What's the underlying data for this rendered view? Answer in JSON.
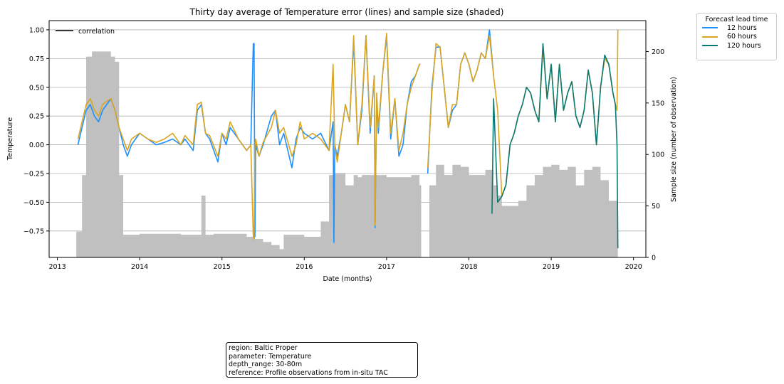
{
  "chart_data": {
    "type": "line",
    "title": "Thirty day average of Temperature error (lines) and sample size (shaded)",
    "xlabel": "Date (months)",
    "ylabel": "Temperature",
    "y2label": "Sample size (number of observation)",
    "xlim": [
      2012.9,
      2020.15
    ],
    "ylim": [
      -0.98,
      1.08
    ],
    "y2lim": [
      0,
      230
    ],
    "x_ticks": [
      "2013",
      "2014",
      "2015",
      "2016",
      "2017",
      "2018",
      "2019",
      "2020"
    ],
    "y_ticks": [
      "1.00",
      "0.75",
      "0.50",
      "0.25",
      "0.00",
      "−0.25",
      "−0.50",
      "−0.75"
    ],
    "y2_ticks": [
      "200",
      "150",
      "100",
      "50",
      "0"
    ],
    "grid": "horizontal",
    "correlation_legend": {
      "label": "correlation",
      "color": "#000000",
      "placement": "top-left"
    },
    "legend": {
      "title": "Forecast lead time",
      "placement": "outside-top-right"
    },
    "sample_size": {
      "color": "#c0c0c0",
      "x": [
        2013.23,
        2013.27,
        2013.3,
        2013.35,
        2013.42,
        2013.5,
        2013.6,
        2013.65,
        2013.7,
        2013.75,
        2013.8,
        2013.85,
        2014.0,
        2014.5,
        2014.7,
        2014.75,
        2014.8,
        2014.9,
        2015.0,
        2015.3,
        2015.4,
        2015.5,
        2015.6,
        2015.7,
        2015.75,
        2015.85,
        2016.0,
        2016.1,
        2016.2,
        2016.3,
        2016.35,
        2016.5,
        2016.6,
        2016.65,
        2016.7,
        2016.75,
        2016.85,
        2016.9,
        2017.0,
        2017.2,
        2017.3,
        2017.4,
        2017.42,
        2017.5,
        2017.52,
        2017.6,
        2017.7,
        2017.8,
        2017.9,
        2018.0,
        2018.2,
        2018.3,
        2018.35,
        2018.4,
        2018.5,
        2018.6,
        2018.7,
        2018.8,
        2018.9,
        2019.0,
        2019.1,
        2019.2,
        2019.3,
        2019.4,
        2019.5,
        2019.6,
        2019.7,
        2019.8,
        2019.81
      ],
      "values": [
        25,
        25,
        80,
        195,
        200,
        200,
        200,
        195,
        190,
        80,
        22,
        22,
        23,
        22,
        22,
        60,
        22,
        23,
        23,
        20,
        18,
        15,
        12,
        8,
        22,
        22,
        20,
        20,
        35,
        80,
        82,
        70,
        80,
        78,
        80,
        80,
        80,
        80,
        78,
        78,
        80,
        70,
        0,
        0,
        70,
        90,
        80,
        90,
        88,
        80,
        85,
        70,
        60,
        50,
        50,
        55,
        70,
        80,
        88,
        90,
        85,
        88,
        70,
        85,
        88,
        75,
        55,
        55,
        0
      ]
    },
    "series": [
      {
        "name": "12 hours",
        "color": "#1e90ff",
        "x": [
          2013.25,
          2013.3,
          2013.35,
          2013.4,
          2013.45,
          2013.5,
          2013.55,
          2013.6,
          2013.65,
          2013.7,
          2013.75,
          2013.8,
          2013.85,
          2013.9,
          2014.0,
          2014.1,
          2014.2,
          2014.3,
          2014.4,
          2014.5,
          2014.55,
          2014.65,
          2014.7,
          2014.75,
          2014.8,
          2014.85,
          2014.95,
          2015.0,
          2015.05,
          2015.1,
          2015.2,
          2015.3,
          2015.35,
          2015.38,
          2015.39,
          2015.4,
          2015.41,
          2015.45,
          2015.5,
          2015.6,
          2015.65,
          2015.7,
          2015.75,
          2015.85,
          2015.9,
          2015.95,
          2016.0,
          2016.1,
          2016.2,
          2016.3,
          2016.35,
          2016.36,
          2016.37,
          2016.4,
          2016.45,
          2016.5,
          2016.55,
          2016.6,
          2016.65,
          2016.7,
          2016.75,
          2016.8,
          2016.85,
          2016.86,
          2016.88,
          2016.9,
          2016.95,
          2017.0,
          2017.05,
          2017.1,
          2017.15,
          2017.2,
          2017.25,
          2017.3,
          2017.35,
          2017.4,
          2017.41
        ],
        "values": [
          0.0,
          0.15,
          0.3,
          0.35,
          0.25,
          0.2,
          0.3,
          0.35,
          0.4,
          0.3,
          0.15,
          0.0,
          -0.1,
          0.0,
          0.1,
          0.05,
          0.0,
          0.02,
          0.05,
          0.0,
          0.05,
          -0.05,
          0.3,
          0.35,
          0.1,
          0.05,
          -0.15,
          0.1,
          0.0,
          0.15,
          0.05,
          -0.05,
          0.0,
          0.88,
          0.88,
          -0.8,
          0.0,
          -0.1,
          0.0,
          0.25,
          0.3,
          0.0,
          0.1,
          -0.2,
          0.05,
          0.15,
          0.1,
          0.05,
          0.1,
          -0.05,
          0.2,
          -0.85,
          0.0,
          -0.1,
          0.1,
          0.35,
          0.2,
          0.9,
          0.0,
          0.3,
          0.95,
          0.1,
          0.6,
          -0.72,
          0.4,
          0.1,
          0.6,
          0.95,
          0.05,
          0.4,
          -0.1,
          0.0,
          0.35,
          0.55,
          0.6,
          0.7,
          0.7
        ]
      },
      {
        "name": "12 hours (2017.5–2019.8)",
        "color": "#1e90ff",
        "x": [
          2017.5,
          2017.55,
          2017.6,
          2017.65,
          2017.7,
          2017.75,
          2017.8,
          2017.85,
          2017.9,
          2017.95,
          2018.0,
          2018.05,
          2018.1,
          2018.15,
          2018.2,
          2018.25,
          2018.3
        ],
        "values": [
          -0.25,
          0.5,
          0.85,
          0.85,
          0.5,
          0.15,
          0.3,
          0.35,
          0.7,
          0.8,
          0.7,
          0.55,
          0.65,
          0.8,
          0.75,
          1.0,
          0.6
        ]
      },
      {
        "name": "60 hours",
        "color": "#daa520",
        "x": [
          2013.25,
          2013.3,
          2013.35,
          2013.4,
          2013.45,
          2013.5,
          2013.55,
          2013.6,
          2013.65,
          2013.7,
          2013.75,
          2013.8,
          2013.85,
          2013.9,
          2014.0,
          2014.1,
          2014.2,
          2014.3,
          2014.4,
          2014.5,
          2014.55,
          2014.65,
          2014.7,
          2014.75,
          2014.8,
          2014.85,
          2014.95,
          2015.0,
          2015.05,
          2015.1,
          2015.2,
          2015.3,
          2015.35,
          2015.38,
          2015.39,
          2015.4,
          2015.41,
          2015.45,
          2015.5,
          2015.6,
          2015.65,
          2015.7,
          2015.75,
          2015.85,
          2015.9,
          2015.95,
          2016.0,
          2016.1,
          2016.2,
          2016.3,
          2016.35,
          2016.37,
          2016.4,
          2016.45,
          2016.5,
          2016.55,
          2016.6,
          2016.65,
          2016.7,
          2016.75,
          2016.8,
          2016.85,
          2016.86,
          2016.88,
          2016.9,
          2016.95,
          2017.0,
          2017.05,
          2017.1,
          2017.15,
          2017.2,
          2017.25,
          2017.3,
          2017.35,
          2017.4,
          2017.41
        ],
        "values": [
          0.05,
          0.2,
          0.35,
          0.4,
          0.3,
          0.25,
          0.35,
          0.38,
          0.4,
          0.3,
          0.15,
          0.05,
          -0.05,
          0.05,
          0.1,
          0.05,
          0.02,
          0.05,
          0.1,
          0.0,
          0.08,
          0.0,
          0.35,
          0.37,
          0.1,
          0.08,
          -0.1,
          0.1,
          0.05,
          0.2,
          0.05,
          -0.05,
          0.0,
          -0.8,
          -0.82,
          0.0,
          0.05,
          -0.1,
          0.02,
          0.15,
          0.3,
          0.1,
          0.15,
          -0.1,
          0.0,
          0.2,
          0.05,
          0.1,
          0.05,
          -0.05,
          0.7,
          0.0,
          -0.15,
          0.1,
          0.35,
          0.2,
          0.95,
          0.0,
          0.35,
          0.95,
          0.15,
          0.6,
          -0.7,
          0.45,
          0.15,
          0.6,
          0.97,
          0.1,
          0.4,
          -0.05,
          0.1,
          0.35,
          0.5,
          0.6,
          0.7,
          0.7
        ]
      },
      {
        "name": "60 hours (2017.5–2019.8)",
        "color": "#daa520",
        "x": [
          2017.5,
          2017.55,
          2017.6,
          2017.65,
          2017.7,
          2017.75,
          2017.8,
          2017.85,
          2017.9,
          2017.95,
          2018.0,
          2018.05,
          2018.1,
          2018.15,
          2018.2,
          2018.25,
          2018.3,
          2018.35,
          2018.4,
          2018.45,
          2018.5,
          2018.55,
          2018.6,
          2018.65,
          2018.7,
          2018.75,
          2018.8,
          2018.85,
          2018.9,
          2018.95,
          2019.0,
          2019.05,
          2019.1,
          2019.15,
          2019.2,
          2019.25,
          2019.3,
          2019.35,
          2019.4,
          2019.45,
          2019.5,
          2019.55,
          2019.6,
          2019.65,
          2019.7,
          2019.75,
          2019.78,
          2019.8,
          2019.81
        ],
        "values": [
          -0.2,
          0.45,
          0.88,
          0.85,
          0.5,
          0.15,
          0.35,
          0.35,
          0.7,
          0.8,
          0.7,
          0.55,
          0.65,
          0.8,
          0.75,
          0.95,
          0.6,
          0.3,
          -0.45,
          -0.35,
          0.0,
          0.1,
          0.25,
          0.35,
          0.5,
          0.45,
          0.3,
          0.2,
          0.85,
          0.4,
          0.7,
          0.2,
          0.7,
          0.3,
          0.45,
          0.55,
          0.25,
          0.15,
          0.3,
          0.65,
          0.45,
          0.0,
          0.5,
          0.75,
          0.7,
          0.45,
          0.35,
          0.3,
          1.0
        ]
      },
      {
        "name": "120 hours",
        "color": "#0b7a75",
        "x": [
          2018.28,
          2018.3,
          2018.35,
          2018.4,
          2018.45,
          2018.5,
          2018.55,
          2018.6,
          2018.65,
          2018.7,
          2018.75,
          2018.8,
          2018.85,
          2018.9,
          2018.95,
          2019.0,
          2019.05,
          2019.1,
          2019.15,
          2019.2,
          2019.25,
          2019.3,
          2019.35,
          2019.4,
          2019.45,
          2019.5,
          2019.55,
          2019.6,
          2019.65,
          2019.7,
          2019.75,
          2019.78,
          2019.8,
          2019.81
        ],
        "values": [
          -0.6,
          0.4,
          -0.5,
          -0.45,
          -0.35,
          0.0,
          0.1,
          0.25,
          0.35,
          0.5,
          0.45,
          0.3,
          0.2,
          0.88,
          0.4,
          0.7,
          0.2,
          0.7,
          0.3,
          0.45,
          0.55,
          0.25,
          0.15,
          0.3,
          0.65,
          0.45,
          0.0,
          0.5,
          0.78,
          0.7,
          0.45,
          0.35,
          0.0,
          -0.9
        ]
      }
    ],
    "legend_entries": [
      {
        "label": "12 hours",
        "color": "#1e90ff"
      },
      {
        "label": "60 hours",
        "color": "#daa520"
      },
      {
        "label": "120 hours",
        "color": "#0b7a75"
      }
    ]
  },
  "info_box": {
    "lines": [
      "region: Baltic Proper",
      "parameter: Temperature",
      "depth_range: 30-80m",
      "reference: Profile observations from in-situ TAC"
    ]
  }
}
